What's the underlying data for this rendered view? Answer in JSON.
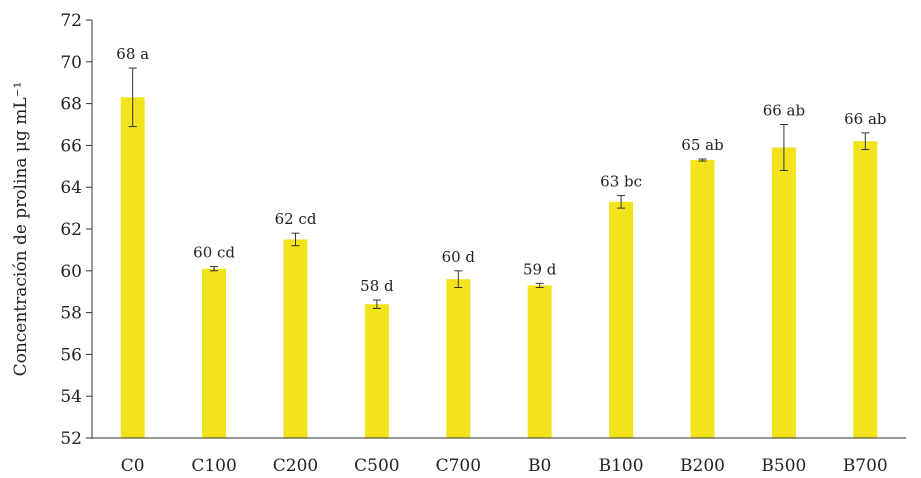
{
  "chart_data": {
    "type": "bar",
    "title": "",
    "xlabel": "",
    "ylabel": "Concentración de prolina μg mL⁻¹",
    "ylim": [
      52,
      72
    ],
    "y_ticks": [
      52,
      54,
      56,
      58,
      60,
      62,
      64,
      66,
      68,
      70,
      72
    ],
    "grid": false,
    "legend": "none",
    "bar_color": "#f2e31c",
    "categories": [
      "C0",
      "C100",
      "C200",
      "C500",
      "C700",
      "B0",
      "B100",
      "B200",
      "B500",
      "B700"
    ],
    "values": [
      68.3,
      60.1,
      61.5,
      58.4,
      59.6,
      59.3,
      63.3,
      65.3,
      65.9,
      66.2
    ],
    "errors": [
      1.4,
      0.1,
      0.3,
      0.2,
      0.4,
      0.1,
      0.3,
      0.05,
      1.1,
      0.4
    ],
    "data_labels": [
      "68 a",
      "60 cd",
      "62 cd",
      "58 d",
      "60 d",
      "59 d",
      "63 bc",
      "65 ab",
      "66 ab",
      "66 ab"
    ]
  }
}
